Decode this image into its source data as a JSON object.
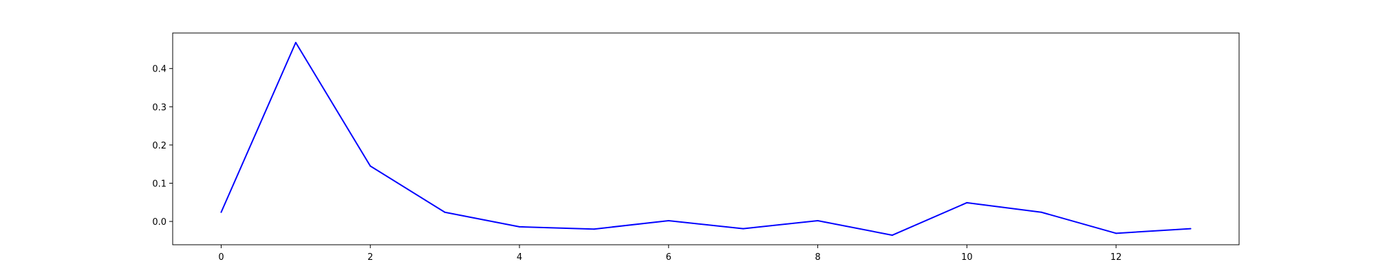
{
  "chart_data": {
    "type": "line",
    "title": "",
    "xlabel": "",
    "ylabel": "",
    "x": [
      0,
      1,
      2,
      3,
      4,
      5,
      6,
      7,
      8,
      9,
      10,
      11,
      12,
      13
    ],
    "series": [
      {
        "color": "#0000ff",
        "values": [
          0.024,
          0.468,
          0.145,
          0.024,
          -0.014,
          -0.02,
          0.002,
          -0.019,
          0.002,
          -0.036,
          0.049,
          0.024,
          -0.031,
          -0.019
        ]
      }
    ],
    "xlim": [
      -0.65,
      13.65
    ],
    "ylim": [
      -0.061,
      0.493
    ],
    "xticks": [
      0,
      2,
      4,
      6,
      8,
      10,
      12
    ],
    "yticks": [
      0.0,
      0.1,
      0.2,
      0.3,
      0.4
    ],
    "xtick_labels": [
      "0",
      "2",
      "4",
      "6",
      "8",
      "10",
      "12"
    ],
    "ytick_labels": [
      "0.0",
      "0.1",
      "0.2",
      "0.3",
      "0.4"
    ],
    "grid": false,
    "legend": "none"
  }
}
